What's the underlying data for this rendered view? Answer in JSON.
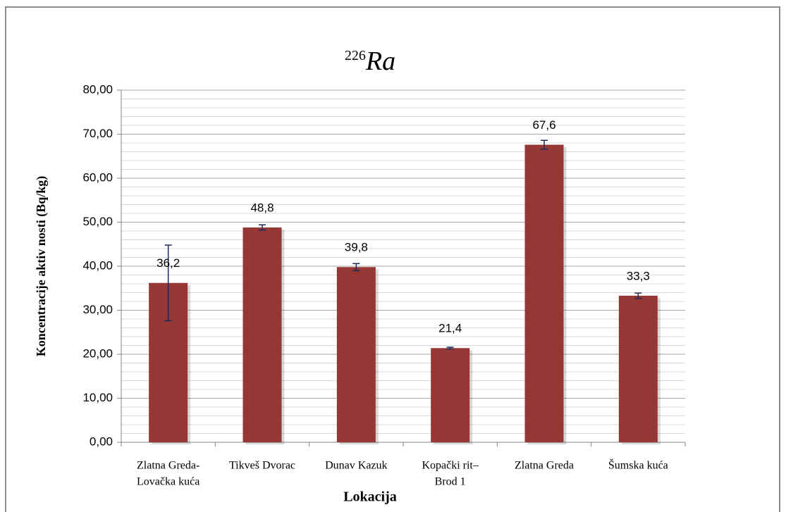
{
  "chart_data": {
    "type": "bar",
    "title_superscript": "226",
    "title": "Ra",
    "y_axis_label": "Koncentracije aktiv nosti (Bq/kg)",
    "x_axis_label": "Lokacija",
    "categories": [
      [
        "Zlatna Greda-",
        "Lovačka kuća"
      ],
      [
        "Tikveš Dvorac"
      ],
      [
        "Dunav Kazuk"
      ],
      [
        "Kopački rit–",
        "Brod 1"
      ],
      [
        "Zlatna Greda"
      ],
      [
        "Šumska kuća"
      ]
    ],
    "values": [
      36.2,
      48.8,
      39.8,
      21.4,
      67.6,
      33.3
    ],
    "value_labels": [
      "36,2",
      "48,8",
      "39,8",
      "21,4",
      "67,6",
      "33,3"
    ],
    "errors": [
      8.6,
      0.6,
      0.8,
      0.2,
      1.0,
      0.6
    ],
    "color": "#953735",
    "error_color": "#1f2a5a",
    "ylim": [
      0,
      80
    ],
    "yticks": [
      {
        "value": 0,
        "label": "0,00"
      },
      {
        "value": 10,
        "label": "10,00"
      },
      {
        "value": 20,
        "label": "20,00"
      },
      {
        "value": 30,
        "label": "30,00"
      },
      {
        "value": 40,
        "label": "40,00"
      },
      {
        "value": 50,
        "label": "50,00"
      },
      {
        "value": 60,
        "label": "60,00"
      },
      {
        "value": 70,
        "label": "70,00"
      },
      {
        "value": 80,
        "label": "80,00"
      }
    ],
    "grid": true,
    "minor_grid_divisions": 5
  }
}
